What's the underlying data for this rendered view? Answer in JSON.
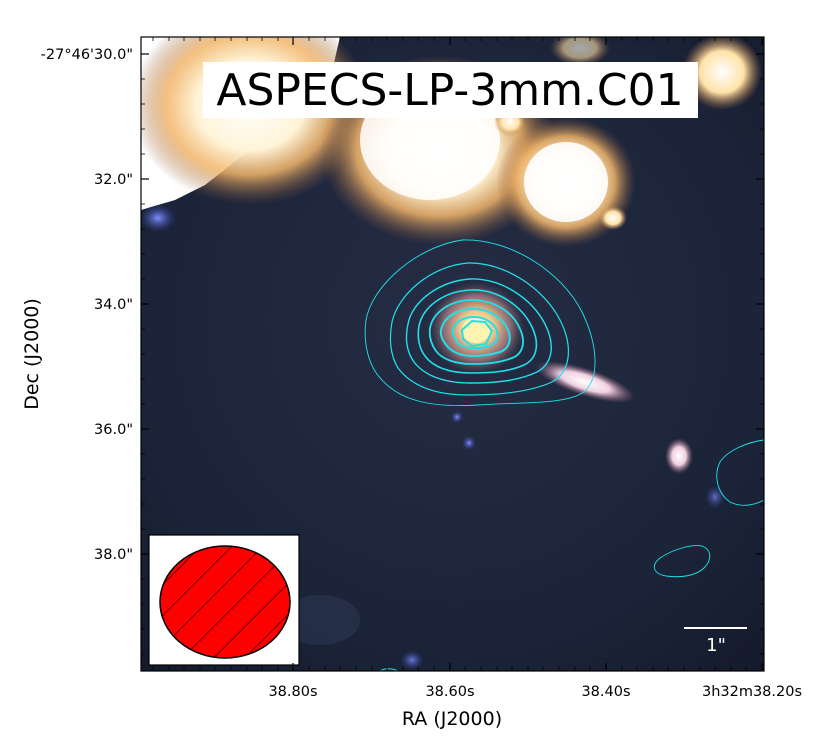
{
  "figure": {
    "title": "ASPECS-LP-3mm.C01",
    "x_axis_label": "RA (J2000)",
    "y_axis_label": "Dec (J2000)",
    "x_ticks": [
      "38.80s",
      "38.60s",
      "38.40s",
      "3h32m38.20s"
    ],
    "y_ticks": [
      "-27°46'30.0\"",
      "32.0\"",
      "34.0\"",
      "36.0\"",
      "38.0\""
    ],
    "scale_bar_label": "1\"",
    "contour_color": "#22e0e8",
    "beam_color": "#ff0000",
    "background_color": "#1a2338"
  }
}
